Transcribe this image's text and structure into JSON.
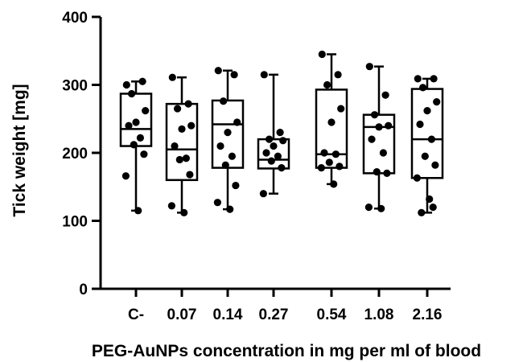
{
  "chart_data": {
    "type": "box",
    "xlabel": "PEG-AuNPs concentration in mg per ml of blood",
    "ylabel": "Tick weight [mg]",
    "ylim": [
      0,
      400
    ],
    "yticks": [
      0,
      100,
      200,
      300,
      400
    ],
    "ytick_labels": [
      "0",
      "100",
      "200",
      "300",
      "400"
    ],
    "categories": [
      "C-",
      "0.07",
      "0.14",
      "0.27",
      "0.54",
      "1.08",
      "2.16"
    ],
    "boxes": [
      {
        "min": 115,
        "q1": 210,
        "median": 235,
        "q3": 287,
        "max": 305
      },
      {
        "min": 112,
        "q1": 160,
        "median": 205,
        "q3": 272,
        "max": 311
      },
      {
        "min": 117,
        "q1": 178,
        "median": 242,
        "q3": 277,
        "max": 321
      },
      {
        "min": 140,
        "q1": 177,
        "median": 190,
        "q3": 220,
        "max": 315
      },
      {
        "min": 154,
        "q1": 178,
        "median": 198,
        "q3": 293,
        "max": 345
      },
      {
        "min": 118,
        "q1": 170,
        "median": 238,
        "q3": 256,
        "max": 327
      },
      {
        "min": 112,
        "q1": 163,
        "median": 220,
        "q3": 294,
        "max": 309
      }
    ],
    "points": [
      [
        300,
        305,
        287,
        262,
        245,
        240,
        222,
        212,
        198,
        166,
        115
      ],
      [
        311,
        272,
        265,
        240,
        235,
        210,
        192,
        190,
        168,
        122,
        112
      ],
      [
        321,
        315,
        276,
        245,
        230,
        210,
        195,
        182,
        152,
        127,
        117
      ],
      [
        315,
        230,
        220,
        218,
        210,
        200,
        195,
        188,
        178,
        140
      ],
      [
        345,
        315,
        300,
        265,
        245,
        200,
        198,
        186,
        180,
        178,
        154
      ],
      [
        327,
        285,
        256,
        240,
        238,
        220,
        200,
        172,
        170,
        120,
        118
      ],
      [
        309,
        309,
        296,
        275,
        262,
        242,
        220,
        195,
        182,
        163,
        132,
        120,
        112
      ]
    ],
    "grid": false,
    "legend": "none"
  }
}
